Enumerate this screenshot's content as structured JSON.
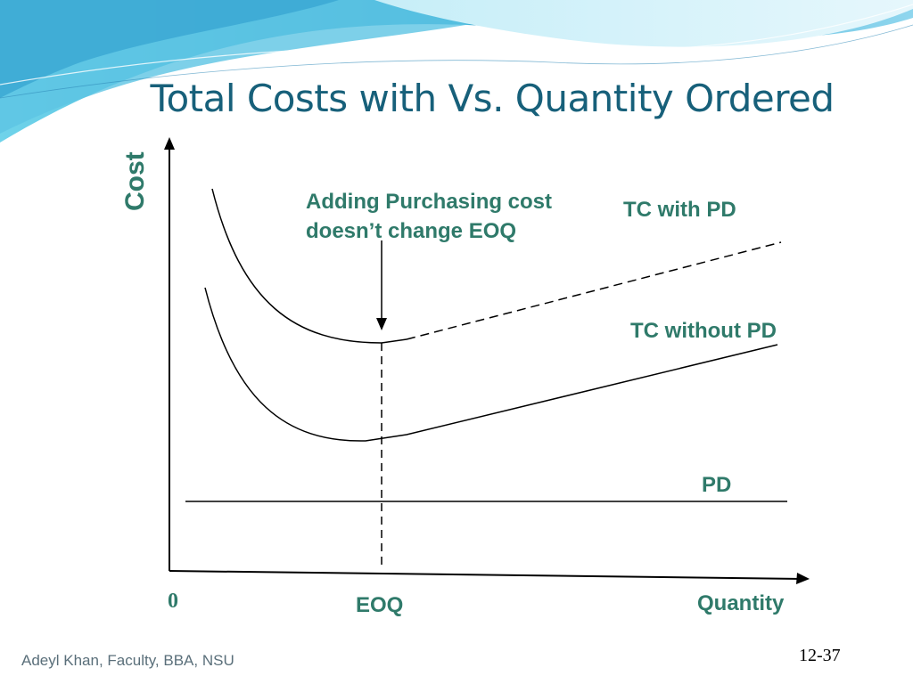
{
  "slide": {
    "title": "Total Costs with Vs. Quantity Ordered",
    "footer": "Adeyl Khan, Faculty, BBA, NSU",
    "page_number": "12-37"
  },
  "diagram": {
    "y_axis_label": "Cost",
    "x_axis_label": "Quantity",
    "origin_label": "0",
    "eoq_label": "EOQ",
    "annotation_line1": "Adding Purchasing cost",
    "annotation_line2": "doesn’t change EOQ",
    "curves": {
      "tc_with_pd": "TC with PD",
      "tc_without_pd": "TC without PD",
      "pd": "PD"
    },
    "colors": {
      "label": "#2f7a6a",
      "title": "#17607a",
      "wave_dark": "#3bb2d6",
      "wave_light": "#a9e2f2"
    }
  }
}
